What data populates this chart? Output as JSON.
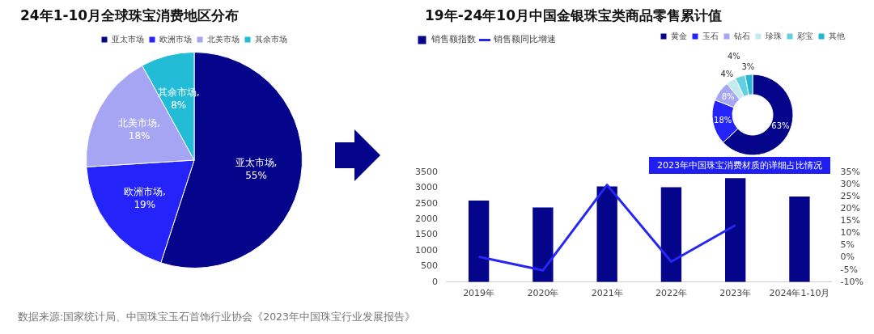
{
  "chart_data": [
    {
      "type": "pie",
      "title": "24年1-10月全球珠宝消费地区分布",
      "categories": [
        "亚太市场",
        "欧洲市场",
        "北美市场",
        "其余市场"
      ],
      "values": [
        55,
        19,
        18,
        8
      ],
      "colors": [
        "#05058c",
        "#2323fa",
        "#a5a5f3",
        "#22bcd6"
      ],
      "value_labels": [
        "亚太市场, 55%",
        "欧洲市场, 19%",
        "北美市场, 18%",
        "其余市场, 8%"
      ],
      "legend": "top",
      "annotations": [
        "数据来源:国家统计局、中国珠宝玉石首饰行业协会《2023年中国珠宝行业发展报告》"
      ]
    },
    {
      "type": "bar",
      "title": "19年-24年10月中国金银珠宝类商品零售累计值",
      "categories": [
        "2019年",
        "2020年",
        "2021年",
        "2022年",
        "2023年",
        "2024年1-10月"
      ],
      "series": [
        {
          "name": "销售额指数",
          "type": "bar",
          "color": "#05058c",
          "values": [
            2600,
            2380,
            3050,
            3020,
            3310,
            2730
          ]
        },
        {
          "name": "销售额同比增速",
          "type": "line",
          "axis": "y2",
          "color": "#2626f5",
          "values": [
            0.4,
            -5.2,
            29.8,
            -1.6,
            13.3,
            null
          ]
        }
      ],
      "ylim": [
        0,
        3500
      ],
      "yticks": [
        0,
        500,
        1000,
        1500,
        2000,
        2500,
        3000,
        3500
      ],
      "y2lim": [
        -10,
        35
      ],
      "y2ticks": [
        {
          "value": -10,
          "label": "-10%"
        },
        {
          "value": -5,
          "label": "-5%"
        },
        {
          "value": 0,
          "label": "0%"
        },
        {
          "value": 5,
          "label": "5%"
        },
        {
          "value": 10,
          "label": "10%"
        },
        {
          "value": 15,
          "label": "15%"
        },
        {
          "value": 20,
          "label": "20%"
        },
        {
          "value": 25,
          "label": "25%"
        },
        {
          "value": 30,
          "label": "30%"
        },
        {
          "value": 35,
          "label": "35%"
        }
      ],
      "legend": "top left",
      "grid": false,
      "marker": "none"
    },
    {
      "type": "donut",
      "title": "2023年中国珠宝消费材质的详细占比情况",
      "categories": [
        "黄金",
        "玉石",
        "钻石",
        "珍珠",
        "彩宝",
        "其他"
      ],
      "values": [
        63,
        18,
        8,
        4,
        4,
        3
      ],
      "colors": [
        "#05058c",
        "#2323fa",
        "#a5a5f3",
        "#c3ebf0",
        "#62d0e0",
        "#22b6d2"
      ],
      "value_labels": [
        "63%",
        "18%",
        "8%",
        "4%",
        "4%",
        "3%"
      ],
      "legend": "top"
    }
  ]
}
